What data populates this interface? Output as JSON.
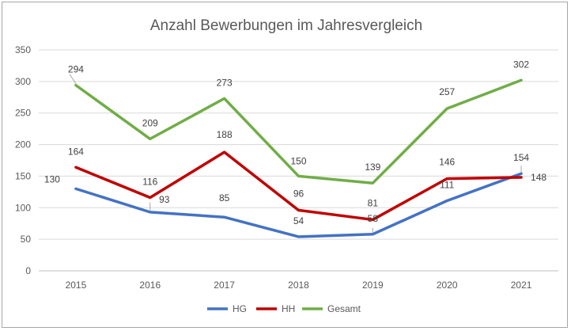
{
  "chart_data": {
    "type": "line",
    "title": "Anzahl Bewerbungen im Jahresvergleich",
    "xlabel": "",
    "ylabel": "",
    "categories": [
      "2015",
      "2016",
      "2017",
      "2018",
      "2019",
      "2020",
      "2021"
    ],
    "ylim": [
      0,
      350
    ],
    "yticks": [
      0,
      50,
      100,
      150,
      200,
      250,
      300,
      350
    ],
    "grid": true,
    "legend": "bottom",
    "series": [
      {
        "name": "HG",
        "color": "#4472c4",
        "values": [
          130,
          93,
          85,
          54,
          58,
          111,
          154
        ]
      },
      {
        "name": "HH",
        "color": "#c00000",
        "values": [
          164,
          116,
          188,
          96,
          81,
          146,
          148
        ]
      },
      {
        "name": "Gesamt",
        "color": "#70ad47",
        "values": [
          294,
          209,
          273,
          150,
          139,
          257,
          302
        ]
      }
    ]
  }
}
